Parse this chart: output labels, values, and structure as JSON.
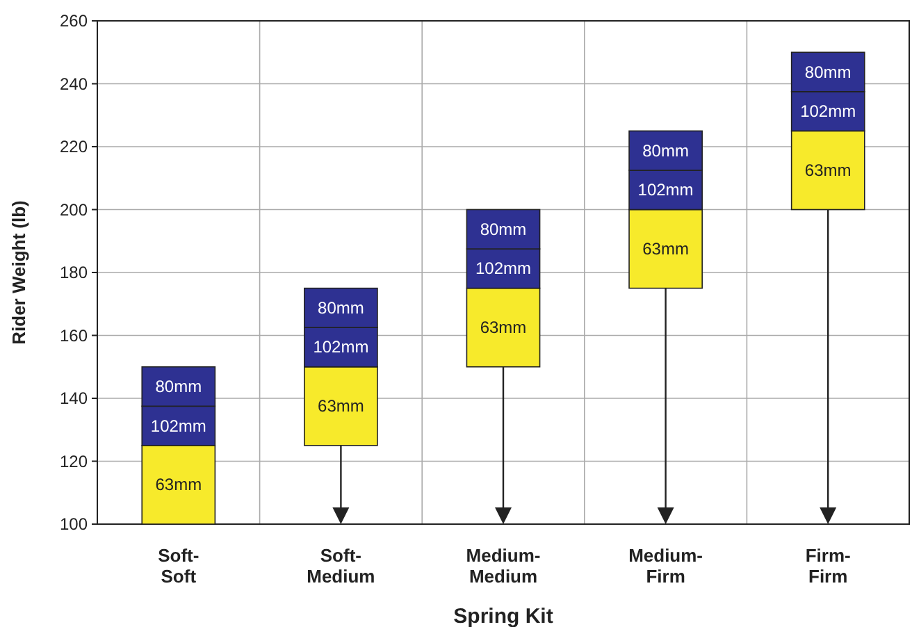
{
  "chart_data": {
    "type": "bar",
    "xlabel": "Spring Kit",
    "ylabel": "Rider Weight (lb)",
    "categories": [
      "Soft-Soft",
      "Soft-Medium",
      "Medium-Medium",
      "Medium-Firm",
      "Firm-Firm"
    ],
    "series": [
      {
        "name": "63mm",
        "color": "#f7ea2b",
        "base": [
          100,
          125,
          150,
          175,
          200
        ],
        "values": [
          25,
          25,
          25,
          25,
          25
        ]
      },
      {
        "name": "102mm",
        "color": "#2e3192",
        "base": [
          125,
          150,
          175,
          200,
          225
        ],
        "values": [
          12.5,
          12.5,
          12.5,
          12.5,
          12.5
        ]
      },
      {
        "name": "80mm",
        "color": "#2e3192",
        "base": [
          137.5,
          162.5,
          187.5,
          212.5,
          237.5
        ],
        "values": [
          12.5,
          12.5,
          12.5,
          12.5,
          12.5
        ]
      }
    ],
    "ylim": [
      100,
      260
    ],
    "yticks": [
      100,
      120,
      140,
      160,
      180,
      200,
      220,
      240,
      260
    ],
    "grid": true
  }
}
